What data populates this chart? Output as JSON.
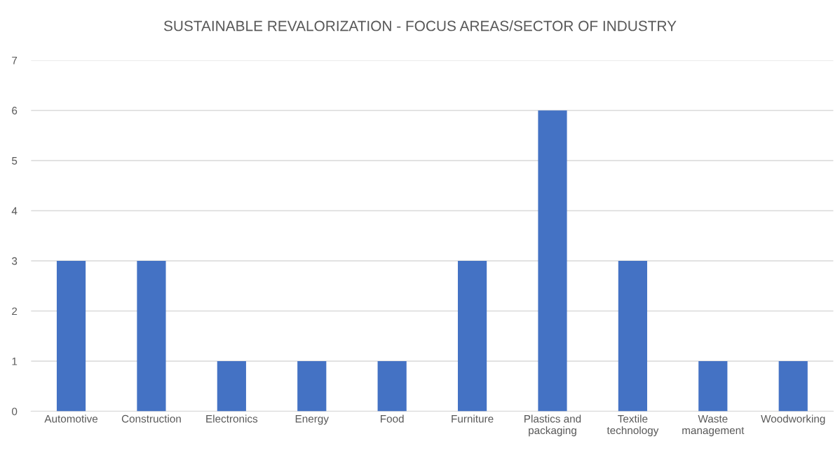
{
  "chart_data": {
    "type": "bar",
    "title": "SUSTAINABLE REVALORIZATION - FOCUS AREAS/SECTOR OF INDUSTRY",
    "categories": [
      "Automotive",
      "Construction",
      "Electronics",
      "Energy",
      "Food",
      "Furniture",
      "Plastics and\npackaging",
      "Textile\ntechnology",
      "Waste\nmanagement",
      "Woodworking"
    ],
    "values": [
      3,
      3,
      1,
      1,
      1,
      3,
      6,
      3,
      1,
      1
    ],
    "color": "#4472c4",
    "ylim": [
      0,
      7
    ],
    "yticks": [
      0,
      1,
      2,
      3,
      4,
      5,
      6,
      7
    ],
    "grid": "y"
  }
}
